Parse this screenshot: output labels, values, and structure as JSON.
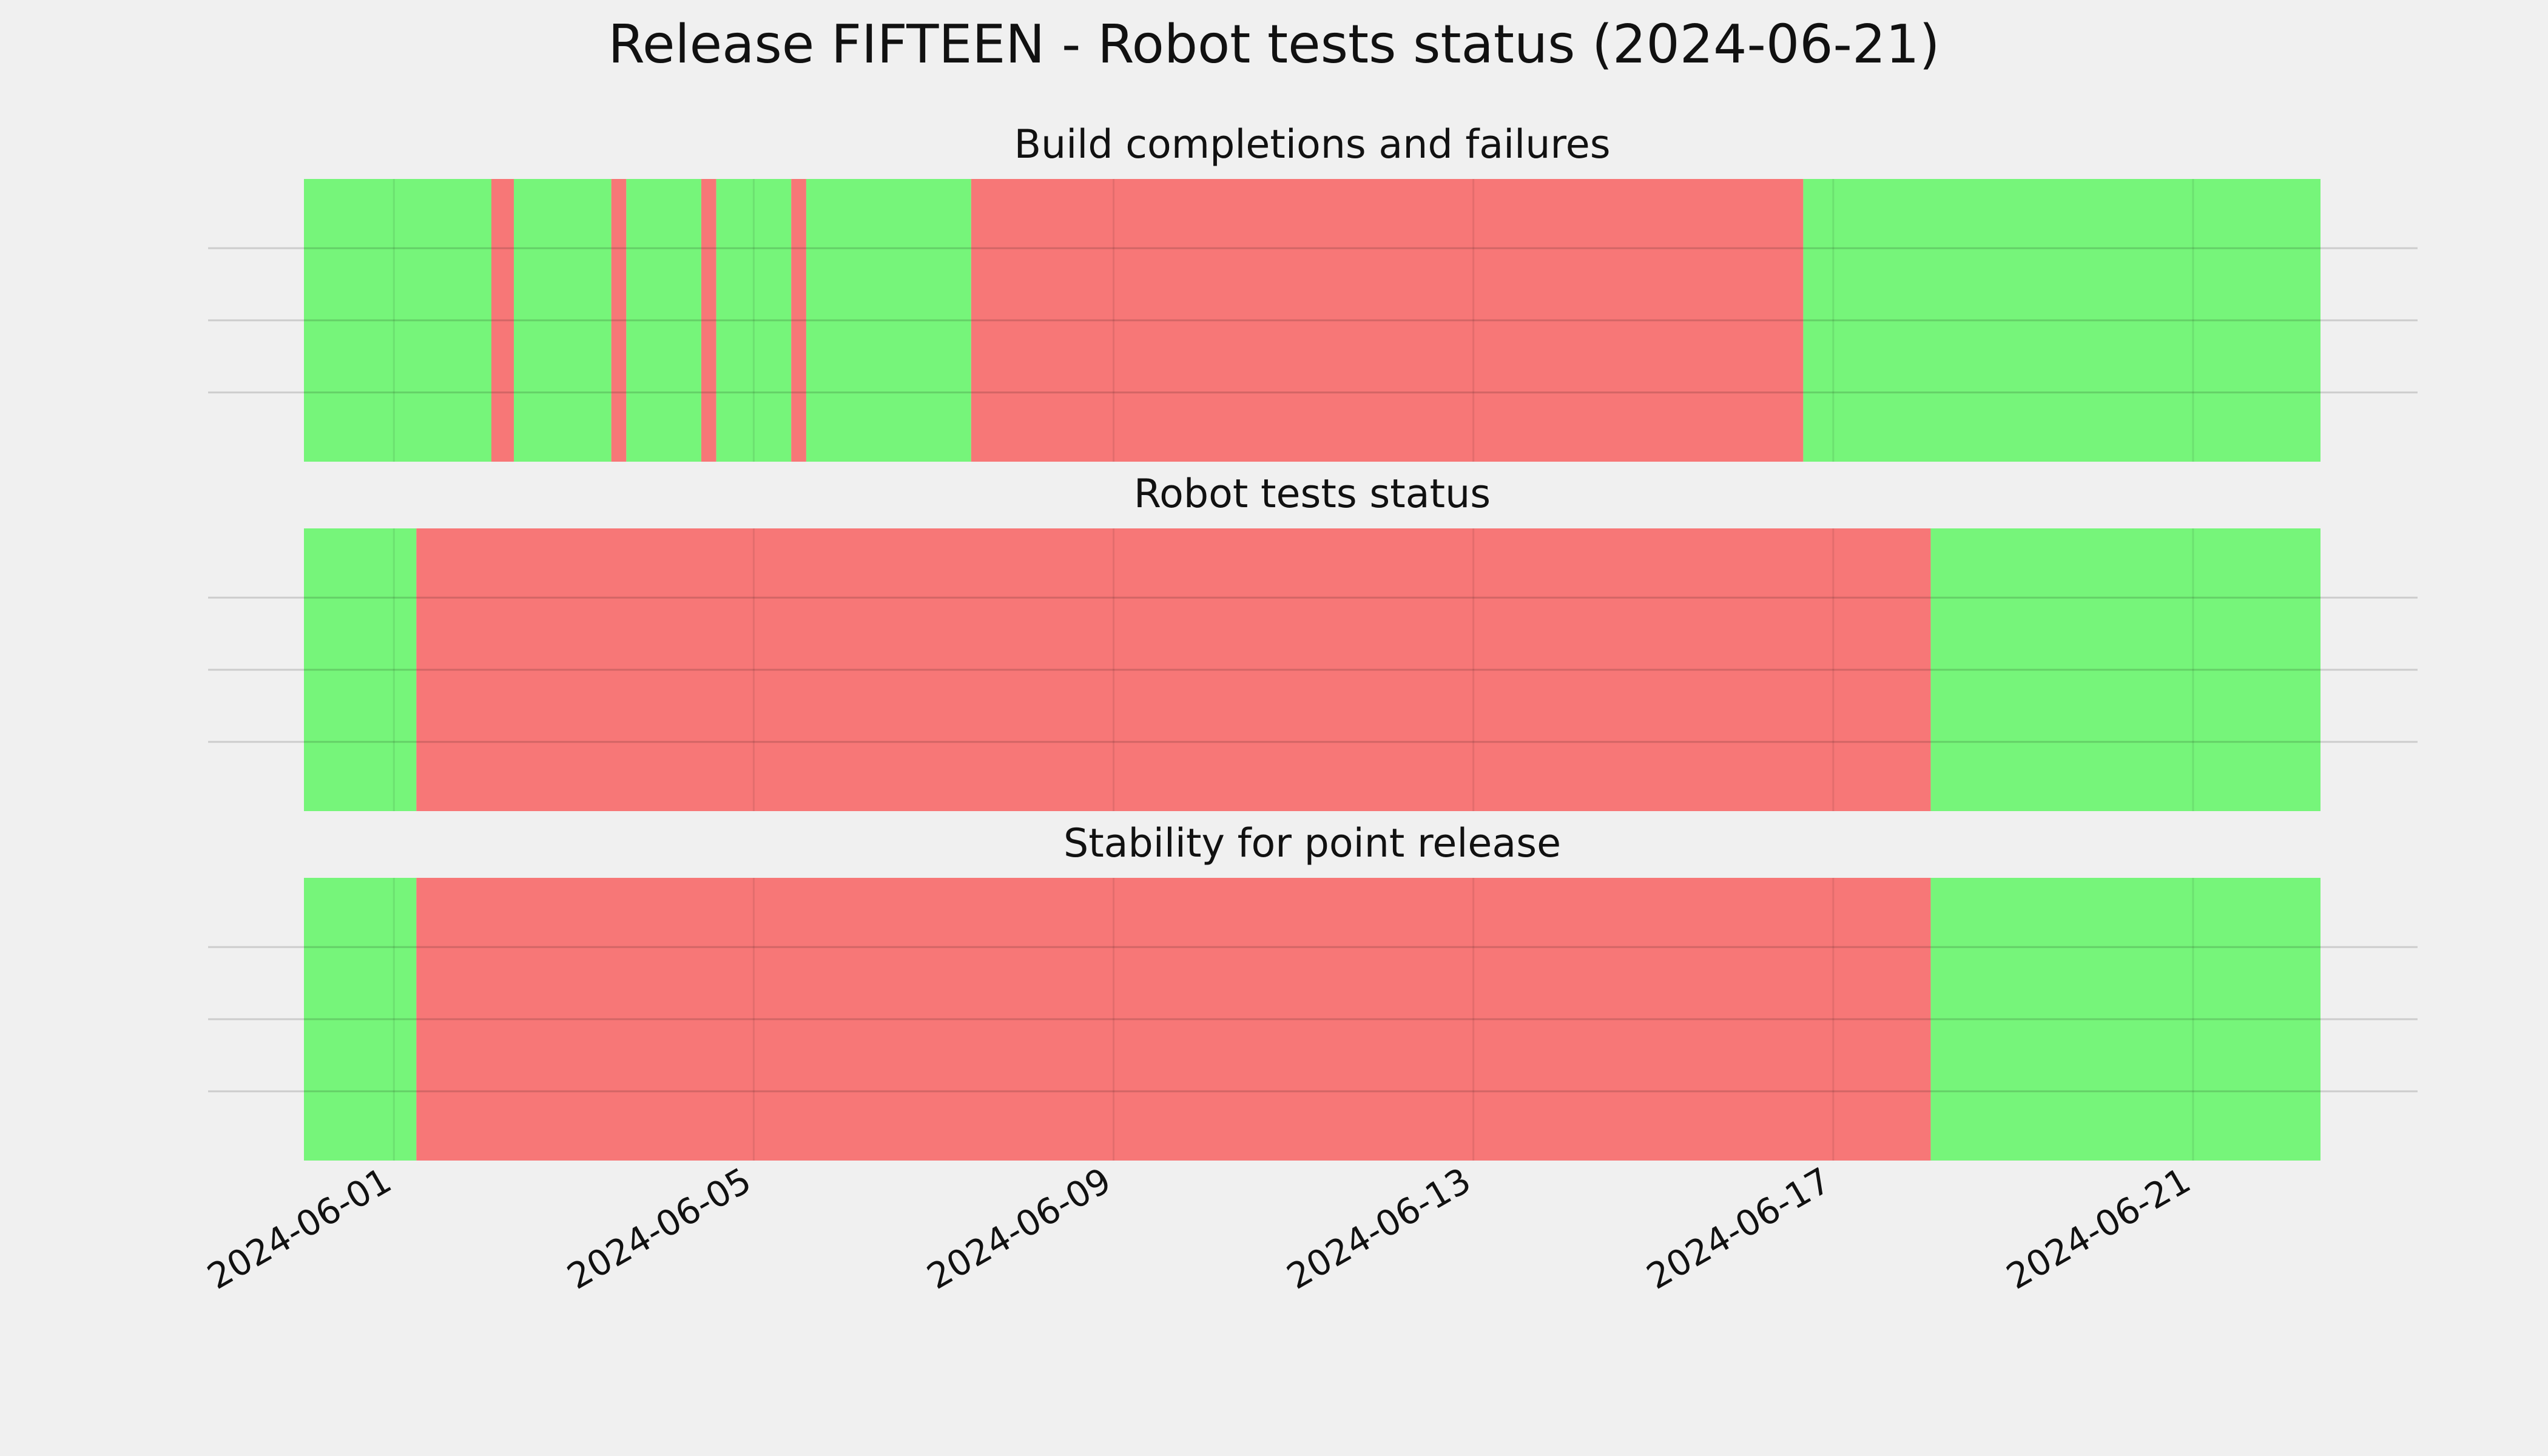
{
  "chart_data": {
    "type": "timeline",
    "title": "Release FIFTEEN - Robot tests status (2024-06-21)",
    "x_range": [
      "2024-05-31T00:00",
      "2024-06-22T10:00"
    ],
    "x_ticks": [
      "2024-06-01",
      "2024-06-05",
      "2024-06-09",
      "2024-06-13",
      "2024-06-17",
      "2024-06-21"
    ],
    "colors": {
      "pass": "#76f57a",
      "fail": "#f77777",
      "background": "#f0f0f0",
      "grid": "#cccccc"
    },
    "panels": [
      {
        "title": "Build completions and failures",
        "segments": [
          {
            "start": "2024-05-31T00:00",
            "end": "2024-06-02T03:00",
            "status": "pass"
          },
          {
            "start": "2024-06-02T03:00",
            "end": "2024-06-02T06:00",
            "status": "fail"
          },
          {
            "start": "2024-06-02T06:00",
            "end": "2024-06-02T02:00",
            "status": "pass"
          },
          {
            "start": "2024-06-02T02:00",
            "end": "2024-06-02T08:00",
            "status": "fail"
          },
          {
            "start": "2024-06-02T08:00",
            "end": "2024-06-03T10:00",
            "status": "pass"
          },
          {
            "start": "2024-06-03T10:00",
            "end": "2024-06-03T14:00",
            "status": "fail"
          },
          {
            "start": "2024-06-03T14:00",
            "end": "2024-06-04T10:00",
            "status": "pass"
          },
          {
            "start": "2024-06-04T10:00",
            "end": "2024-06-04T14:00",
            "status": "fail"
          },
          {
            "start": "2024-06-04T14:00",
            "end": "2024-06-05T10:00",
            "status": "pass"
          },
          {
            "start": "2024-06-05T10:00",
            "end": "2024-06-05T14:00",
            "status": "fail"
          },
          {
            "start": "2024-06-05T14:00",
            "end": "2024-06-07T10:00",
            "status": "pass"
          },
          {
            "start": "2024-06-07T10:00",
            "end": "2024-06-16T16:00",
            "status": "fail"
          },
          {
            "start": "2024-06-16T16:00",
            "end": "2024-06-22T10:00",
            "status": "pass"
          }
        ]
      },
      {
        "title": "Robot tests status",
        "segments": [
          {
            "start": "2024-05-31T00:00",
            "end": "2024-06-01T06:00",
            "status": "pass"
          },
          {
            "start": "2024-06-01T06:00",
            "end": "2024-06-18T02:00",
            "status": "fail"
          },
          {
            "start": "2024-06-18T02:00",
            "end": "2024-06-22T10:00",
            "status": "pass"
          }
        ]
      },
      {
        "title": "Stability for point release",
        "segments": [
          {
            "start": "2024-05-31T00:00",
            "end": "2024-06-01T06:00",
            "status": "pass"
          },
          {
            "start": "2024-06-01T06:00",
            "end": "2024-06-18T02:00",
            "status": "fail"
          },
          {
            "start": "2024-06-18T02:00",
            "end": "2024-06-22T10:00",
            "status": "pass"
          }
        ]
      }
    ]
  }
}
